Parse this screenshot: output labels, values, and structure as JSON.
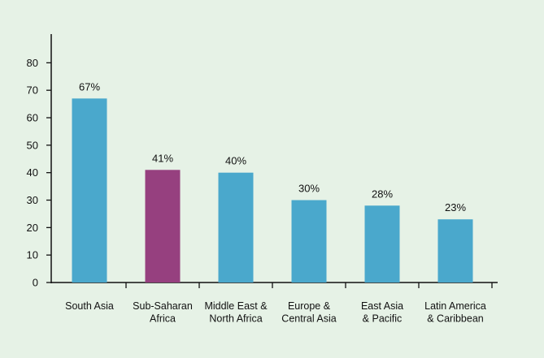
{
  "chart_data": {
    "type": "bar",
    "categories": [
      [
        "South Asia"
      ],
      [
        "Sub-Saharan",
        "Africa"
      ],
      [
        "Middle East &",
        "North Africa"
      ],
      [
        "Europe &",
        "Central Asia"
      ],
      [
        "East Asia",
        "& Pacific"
      ],
      [
        "Latin America",
        "& Caribbean"
      ]
    ],
    "values": [
      67,
      41,
      40,
      30,
      28,
      23
    ],
    "data_labels": [
      "67%",
      "41%",
      "40%",
      "30%",
      "28%",
      "23%"
    ],
    "bar_colors": [
      "#4aa8cc",
      "#96407f",
      "#4aa8cc",
      "#4aa8cc",
      "#4aa8cc",
      "#4aa8cc"
    ],
    "ylim": [
      0,
      80
    ],
    "yticks": [
      "0",
      "10",
      "20",
      "30",
      "40",
      "50",
      "60",
      "70",
      "80"
    ],
    "title": "",
    "xlabel": "",
    "ylabel": "",
    "grid": false
  }
}
